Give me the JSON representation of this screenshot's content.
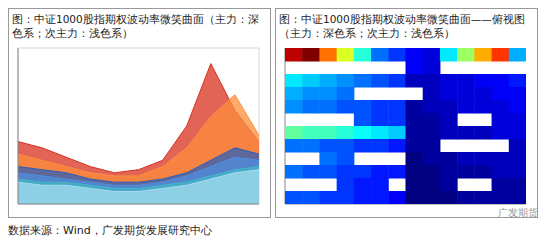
{
  "chart_data": [
    {
      "type": "area",
      "title": "图：中证1000股指期权波动率微笑曲面（主力：深色系；次主力：浅色系）",
      "x": [
        0,
        1,
        2,
        3,
        4,
        5,
        6,
        7,
        8,
        9,
        10
      ],
      "xlim": [
        0,
        10
      ],
      "xticks": [
        0,
        1,
        2,
        3,
        4,
        5,
        6,
        7,
        8,
        9,
        10
      ],
      "ylim": [
        10,
        60
      ],
      "yticks": [
        10,
        20,
        30,
        40,
        50,
        60
      ],
      "grid": true,
      "tick_labels": false,
      "series": [
        {
          "color": "#d7301f",
          "values": [
            30,
            28,
            25,
            22,
            20,
            21,
            24,
            35,
            55,
            40,
            30
          ]
        },
        {
          "color": "#fd8d3c",
          "values": [
            26,
            24,
            22,
            20,
            19,
            19,
            22,
            28,
            38,
            45,
            32
          ]
        },
        {
          "color": "#2c5fb8",
          "values": [
            22,
            21,
            20,
            18,
            17,
            17,
            18,
            20,
            24,
            28,
            26
          ]
        },
        {
          "color": "#4f8fe0",
          "values": [
            20,
            19,
            18,
            17,
            16,
            16,
            17,
            19,
            22,
            25,
            24
          ]
        },
        {
          "color": "#41b6c4",
          "values": [
            18,
            17,
            17,
            16,
            15,
            15,
            16,
            17,
            19,
            21,
            22
          ]
        },
        {
          "color": "#a6dcef",
          "values": [
            17,
            16,
            16,
            15,
            14,
            14,
            15,
            16,
            18,
            20,
            21
          ]
        }
      ]
    },
    {
      "type": "heatmap",
      "title": "图：中证1000股指期权波动率微笑曲面——俯视图（主力：深色系；次主力：浅色系）",
      "xlim": [
        0,
        14
      ],
      "xticks": [
        0,
        7,
        14
      ],
      "ylim": [
        0,
        12
      ],
      "yticks": [
        0,
        4,
        8,
        12
      ],
      "grid": false,
      "tick_labels": false,
      "color_range": [
        12,
        46
      ],
      "cells": [
        [
          44,
          46,
          38,
          32,
          26,
          20,
          18,
          16,
          15,
          24,
          30,
          36,
          40,
          22
        ],
        [
          null,
          null,
          null,
          null,
          null,
          null,
          null,
          16,
          15,
          null,
          null,
          null,
          null,
          null
        ],
        [
          24,
          23,
          22,
          21,
          20,
          19,
          18,
          14,
          14,
          15,
          15,
          16,
          16,
          17
        ],
        [
          22,
          21,
          21,
          20,
          null,
          null,
          null,
          null,
          14,
          15,
          15,
          15,
          16,
          16
        ],
        [
          21,
          20,
          20,
          19,
          19,
          18,
          18,
          13,
          14,
          14,
          15,
          15,
          15,
          16
        ],
        [
          null,
          null,
          null,
          null,
          19,
          18,
          18,
          13,
          13,
          14,
          null,
          null,
          15,
          15
        ],
        [
          28,
          27,
          27,
          26,
          25,
          24,
          23,
          13,
          13,
          14,
          14,
          14,
          15,
          15
        ],
        [
          20,
          20,
          19,
          19,
          18,
          18,
          17,
          13,
          13,
          null,
          null,
          null,
          null,
          14
        ],
        [
          null,
          null,
          20,
          19,
          null,
          null,
          null,
          12,
          13,
          13,
          14,
          14,
          14,
          14
        ],
        [
          20,
          19,
          19,
          18,
          18,
          17,
          17,
          12,
          12,
          13,
          13,
          13,
          14,
          14
        ],
        [
          null,
          null,
          null,
          18,
          17,
          17,
          null,
          12,
          12,
          13,
          null,
          null,
          13,
          13
        ],
        [
          19,
          19,
          18,
          18,
          17,
          17,
          16,
          12,
          12,
          12,
          13,
          13,
          13,
          13
        ]
      ]
    }
  ],
  "source": "数据来源：Wind，广发期货发展研究中心",
  "watermark": "广发期货"
}
